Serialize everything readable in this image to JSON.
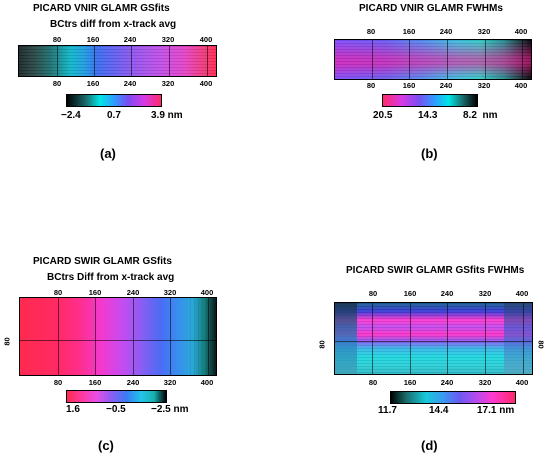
{
  "panels": {
    "a": {
      "title": "PICARD VNIR GLAMR GSfits",
      "subtitle": "BCtrs diff from x-track avg",
      "ticks": [
        "80",
        "160",
        "240",
        "320",
        "400"
      ],
      "colorbar": {
        "min": "−2.4",
        "mid": "0.7",
        "max": "3.9 nm"
      },
      "letter": "(a)"
    },
    "b": {
      "title": "PICARD VNIR GLAMR FWHMs",
      "ticks": [
        "80",
        "160",
        "240",
        "320",
        "400"
      ],
      "colorbar": {
        "min": "20.5",
        "mid": "14.3",
        "max": "8.2  nm"
      },
      "letter": "(b)"
    },
    "c": {
      "title": "PICARD SWIR GLAMR GSfits",
      "subtitle": "BCtrs Diff from x-track avg",
      "ticks": [
        "80",
        "160",
        "240",
        "320",
        "400"
      ],
      "side": "80",
      "colorbar": {
        "min": "1.6",
        "mid": "−0.5",
        "max": "−2.5 nm"
      },
      "letter": "(c)"
    },
    "d": {
      "title": "PICARD SWIR GLAMR GSfits FWHMs",
      "ticks": [
        "80",
        "160",
        "240",
        "320",
        "400"
      ],
      "side": "80",
      "colorbar": {
        "min": "11.7",
        "mid": "14.4",
        "max": "17.1 nm"
      },
      "letter": "(d)"
    }
  }
}
